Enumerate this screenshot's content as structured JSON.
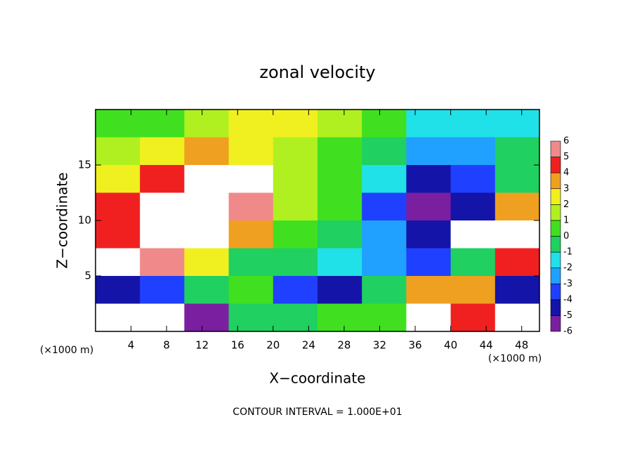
{
  "chart_data": {
    "type": "contour",
    "title": "zonal velocity",
    "x_label": "X−coordinate",
    "y_label": "Z−coordinate",
    "x_unit": "(×1000 m)",
    "note": "CONTOUR INTERVAL = 1.000E+01",
    "xlim": [
      0,
      50
    ],
    "ylim": [
      0,
      20
    ],
    "xticks": [
      4,
      8,
      12,
      16,
      20,
      24,
      28,
      32,
      36,
      40,
      44,
      48
    ],
    "yticks": [
      5,
      10,
      15
    ],
    "x": [
      2.5,
      7.5,
      12.5,
      17.5,
      22.5,
      27.5,
      32.5,
      37.5,
      42.5,
      47.5
    ],
    "y": [
      18.75,
      16.25,
      13.75,
      11.25,
      8.75,
      6.25,
      3.75,
      1.25
    ],
    "z": [
      [
        0.5,
        1,
        2,
        2.5,
        2.5,
        1.5,
        0.5,
        -1.5,
        -1.5,
        -1
      ],
      [
        2,
        3,
        4,
        3,
        2,
        1,
        0,
        -2.5,
        -2,
        0
      ],
      [
        3,
        4.5,
        7,
        7,
        2,
        1,
        -1.5,
        -4.5,
        -3.5,
        0
      ],
      [
        4.5,
        7,
        7,
        5.5,
        1.5,
        0.5,
        -3,
        -5,
        -4,
        4
      ],
      [
        5,
        7,
        6.5,
        4,
        0.5,
        0,
        -2,
        -4,
        7,
        7
      ],
      [
        6.5,
        5.5,
        3,
        0,
        0,
        -1.5,
        -2,
        -3.5,
        0,
        5
      ],
      [
        -4,
        -3.5,
        0,
        0.5,
        -3.5,
        -4,
        0,
        4,
        4,
        -4
      ],
      [
        7,
        7,
        -5,
        0,
        0,
        0.5,
        1,
        7,
        5,
        7
      ]
    ],
    "colorbar": {
      "levels": [
        -6,
        -5,
        -4,
        -3,
        -2,
        -1,
        0,
        1,
        2,
        3,
        4,
        5,
        6
      ],
      "colors": [
        "#7a1fa0",
        "#1414a8",
        "#2040ff",
        "#20a0ff",
        "#20e0e8",
        "#20d060",
        "#40e020",
        "#b0f020",
        "#f0f020",
        "#f0a020",
        "#f02020",
        "#f08a8a"
      ],
      "out_of_range_color": "#ffffff"
    }
  }
}
